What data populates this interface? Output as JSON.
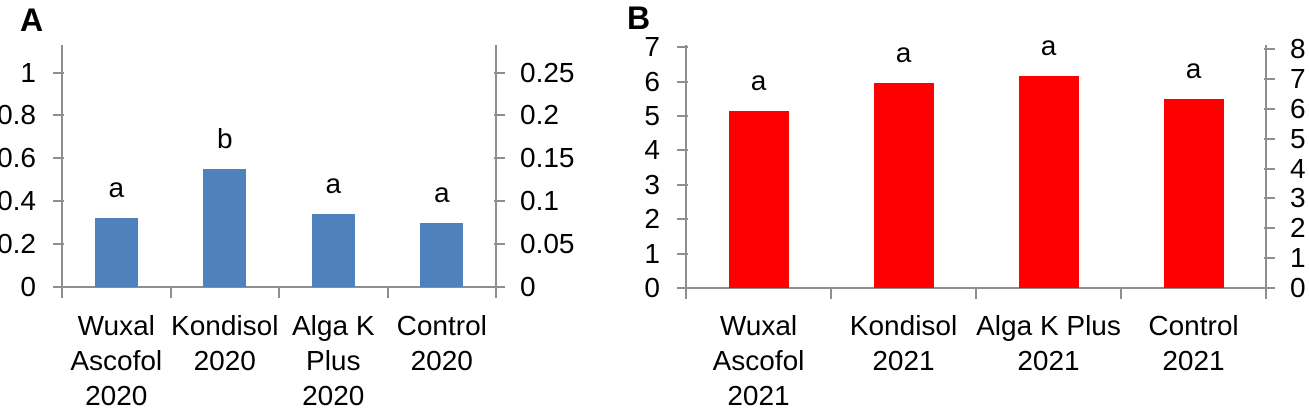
{
  "figure": {
    "description": "Two-panel bar chart figure with significance letters",
    "panel_labels": [
      "A",
      "B"
    ]
  },
  "colors": {
    "panel_a_bar": "#4F81BD",
    "panel_b_bar": "#FF0000",
    "axis_line": "#8E8E8E",
    "text": "#000000"
  },
  "chart_data": [
    {
      "type": "bar",
      "panel_label": "A",
      "bar_color": "#4F81BD",
      "categories": [
        "Wuxal Ascofol 2020",
        "Kondisol 2020",
        "Alga K Plus 2020",
        "Control 2020"
      ],
      "category_label_lines": [
        [
          "Wuxal",
          "Ascofol",
          "2020"
        ],
        [
          "Kondisol",
          "2020"
        ],
        [
          "Alga K",
          "Plus",
          "2020"
        ],
        [
          "Control",
          "2020"
        ]
      ],
      "values": [
        0.32,
        0.55,
        0.34,
        0.3
      ],
      "significance_letters": [
        "a",
        "b",
        "a",
        "a"
      ],
      "left_axis": {
        "min": 0,
        "max": 1,
        "step": 0.2,
        "tick_labels": [
          "0",
          "0.2",
          "0.4",
          "0.6",
          "0.8",
          "1"
        ]
      },
      "right_axis": {
        "min": 0,
        "max": 0.25,
        "step": 0.05,
        "tick_labels": [
          "0",
          "0.05",
          "0.1",
          "0.15",
          "0.2",
          "0.25"
        ]
      },
      "grid": false,
      "legend": false
    },
    {
      "type": "bar",
      "panel_label": "B",
      "bar_color": "#FF0000",
      "categories": [
        "Wuxal Ascofol 2021",
        "Kondisol 2021",
        "Alga K Plus 2021",
        "Control 2021"
      ],
      "category_label_lines": [
        [
          "Wuxal",
          "Ascofol",
          "2021"
        ],
        [
          "Kondisol",
          "2021"
        ],
        [
          "Alga K Plus",
          "2021"
        ],
        [
          "Control",
          "2021"
        ]
      ],
      "values": [
        5.15,
        5.95,
        6.15,
        5.5
      ],
      "significance_letters": [
        "a",
        "a",
        "a",
        "a"
      ],
      "left_axis": {
        "min": 0,
        "max": 7,
        "step": 1,
        "tick_labels": [
          "0",
          "1",
          "2",
          "3",
          "4",
          "5",
          "6",
          "7"
        ]
      },
      "right_axis": {
        "min": 0,
        "max": 8,
        "step": 1,
        "tick_labels": [
          "0",
          "1",
          "2",
          "3",
          "4",
          "5",
          "6",
          "7",
          "8"
        ]
      },
      "grid": false,
      "legend": false
    }
  ]
}
